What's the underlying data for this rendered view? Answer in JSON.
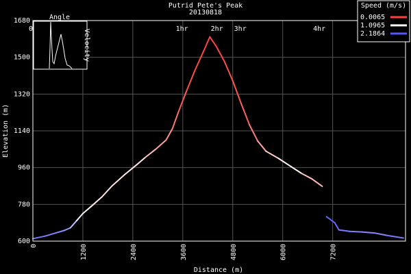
{
  "chart_data": {
    "type": "line",
    "title": "Putrid Pete's Peak",
    "subtitle": "20130818",
    "xlabel": "Distance (m)",
    "ylabel": "Elevation (m)",
    "xlim": [
      0,
      8950
    ],
    "ylim": [
      600,
      1680
    ],
    "x_ticks": [
      "0",
      "1200",
      "2400",
      "3600",
      "4800",
      "6000",
      "7200"
    ],
    "y_ticks": [
      "600",
      "780",
      "960",
      "1140",
      "1320",
      "1500",
      "1680"
    ],
    "grid": true,
    "time_markers": [
      {
        "label": "0h",
        "x": 0
      },
      {
        "label": "1hr",
        "x": 3580
      },
      {
        "label": "2hr",
        "x": 4420
      },
      {
        "label": "3hr",
        "x": 4980
      },
      {
        "label": "4hr",
        "x": 6880
      }
    ],
    "legend": {
      "title": "Speed (m/s)",
      "placement": "top-right",
      "entries": [
        {
          "label": "0.0065",
          "color": "#ff4040"
        },
        {
          "label": "1.0965",
          "color": "#ffffff"
        },
        {
          "label": "2.1864",
          "color": "#5555ff"
        }
      ]
    },
    "inset": {
      "label_top": "Angle",
      "label_right": "Velocity"
    },
    "series": [
      {
        "points": [
          {
            "x": 0,
            "y": 612,
            "speed": 2.0
          },
          {
            "x": 300,
            "y": 625,
            "speed": 1.9
          },
          {
            "x": 550,
            "y": 640,
            "speed": 1.9
          },
          {
            "x": 750,
            "y": 652,
            "speed": 1.8
          },
          {
            "x": 900,
            "y": 665,
            "speed": 1.7
          },
          {
            "x": 1050,
            "y": 700,
            "speed": 1.3
          },
          {
            "x": 1200,
            "y": 735,
            "speed": 1.1
          },
          {
            "x": 1400,
            "y": 770,
            "speed": 1.0
          },
          {
            "x": 1650,
            "y": 815,
            "speed": 1.0
          },
          {
            "x": 1900,
            "y": 870,
            "speed": 0.9
          },
          {
            "x": 2200,
            "y": 925,
            "speed": 0.95
          },
          {
            "x": 2500,
            "y": 975,
            "speed": 1.0
          },
          {
            "x": 2700,
            "y": 1010,
            "speed": 0.85
          },
          {
            "x": 2950,
            "y": 1050,
            "speed": 0.6
          },
          {
            "x": 3200,
            "y": 1095,
            "speed": 0.5
          },
          {
            "x": 3350,
            "y": 1150,
            "speed": 0.4
          },
          {
            "x": 3500,
            "y": 1235,
            "speed": 0.2
          },
          {
            "x": 3700,
            "y": 1340,
            "speed": 0.1
          },
          {
            "x": 3900,
            "y": 1440,
            "speed": 0.05
          },
          {
            "x": 4100,
            "y": 1530,
            "speed": 0.02
          },
          {
            "x": 4250,
            "y": 1600,
            "speed": 0.0065
          },
          {
            "x": 4400,
            "y": 1555,
            "speed": 0.02
          },
          {
            "x": 4600,
            "y": 1480,
            "speed": 0.05
          },
          {
            "x": 4800,
            "y": 1385,
            "speed": 0.1
          },
          {
            "x": 5000,
            "y": 1275,
            "speed": 0.15
          },
          {
            "x": 5200,
            "y": 1170,
            "speed": 0.25
          },
          {
            "x": 5400,
            "y": 1090,
            "speed": 0.45
          },
          {
            "x": 5600,
            "y": 1040,
            "speed": 0.7
          },
          {
            "x": 5900,
            "y": 1005,
            "speed": 0.95
          },
          {
            "x": 6200,
            "y": 965,
            "speed": 1.1
          },
          {
            "x": 6450,
            "y": 932,
            "speed": 1.0
          },
          {
            "x": 6700,
            "y": 905,
            "speed": 0.5
          },
          {
            "x": 6950,
            "y": 868,
            "speed": 0.9
          }
        ]
      },
      {
        "points": [
          {
            "x": 7050,
            "y": 720,
            "speed": 2.1
          },
          {
            "x": 7250,
            "y": 690,
            "speed": 2.1
          },
          {
            "x": 7350,
            "y": 655,
            "speed": 2.0
          },
          {
            "x": 7600,
            "y": 648,
            "speed": 1.9
          },
          {
            "x": 7900,
            "y": 645,
            "speed": 1.9
          },
          {
            "x": 8200,
            "y": 640,
            "speed": 1.8
          },
          {
            "x": 8500,
            "y": 628,
            "speed": 1.9
          },
          {
            "x": 8900,
            "y": 615,
            "speed": 2.0
          }
        ]
      }
    ]
  }
}
